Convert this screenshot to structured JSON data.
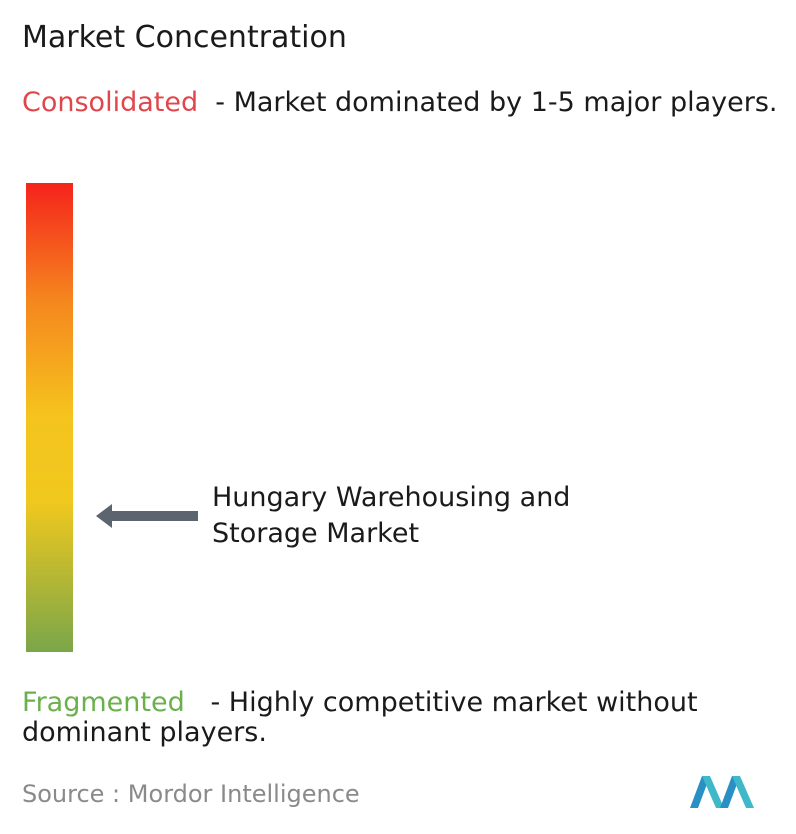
{
  "title": "Market Concentration",
  "consolidated": {
    "label": "Consolidated",
    "description": "- Market dominated by 1-5 major players."
  },
  "fragmented": {
    "label": "Fragmented",
    "description": "- Highly competitive market without dominant players."
  },
  "market": {
    "label": "Hungary Warehousing and Storage Market"
  },
  "source": {
    "label": "Source :",
    "name": "Mordor Intelligence"
  }
}
